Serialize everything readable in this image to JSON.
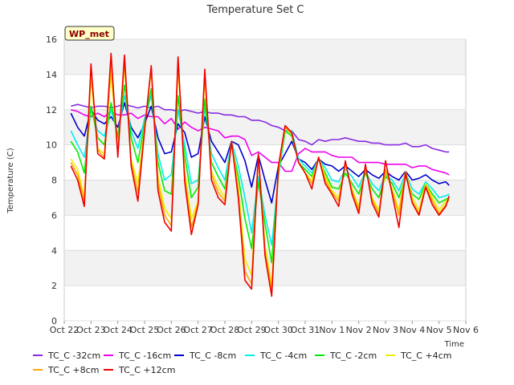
{
  "chart_data": {
    "type": "line",
    "title": "Temperature Set C",
    "xlabel": "Time",
    "ylabel": "Temperature (C)",
    "badge": "WP_met",
    "grid": true,
    "legend_position": "bottom",
    "ylim": [
      0,
      16
    ],
    "yticks": [
      0,
      2,
      4,
      6,
      8,
      10,
      12,
      14,
      16
    ],
    "xlim": [
      "2022-10-22",
      "2022-11-06"
    ],
    "xtick_dates": [
      "2022-10-22",
      "2022-10-23",
      "2022-10-24",
      "2022-10-25",
      "2022-10-26",
      "2022-10-27",
      "2022-10-28",
      "2022-10-29",
      "2022-10-30",
      "2022-10-31",
      "2022-11-01",
      "2022-11-02",
      "2022-11-03",
      "2022-11-04",
      "2022-11-05",
      "2022-11-06"
    ],
    "xtick_labels": [
      "Oct 22",
      "Oct 23",
      "Oct 24",
      "Oct 25",
      "Oct 26",
      "Oct 27",
      "Oct 28",
      "Oct 29",
      "Oct 30",
      "Oct 31",
      "Nov 1",
      "Nov 2",
      "Nov 3",
      "Nov 4",
      "Nov 5",
      "Nov 6"
    ],
    "x": [
      "2022-10-22 06:00",
      "2022-10-22 12:00",
      "2022-10-22 18:00",
      "2022-10-23 00:00",
      "2022-10-23 06:00",
      "2022-10-23 12:00",
      "2022-10-23 18:00",
      "2022-10-24 00:00",
      "2022-10-24 06:00",
      "2022-10-24 12:00",
      "2022-10-24 18:00",
      "2022-10-25 00:00",
      "2022-10-25 06:00",
      "2022-10-25 12:00",
      "2022-10-25 18:00",
      "2022-10-26 00:00",
      "2022-10-26 06:00",
      "2022-10-26 12:00",
      "2022-10-26 18:00",
      "2022-10-27 00:00",
      "2022-10-27 06:00",
      "2022-10-27 12:00",
      "2022-10-27 18:00",
      "2022-10-28 00:00",
      "2022-10-28 06:00",
      "2022-10-28 12:00",
      "2022-10-28 18:00",
      "2022-10-29 00:00",
      "2022-10-29 06:00",
      "2022-10-29 12:00",
      "2022-10-29 18:00",
      "2022-10-30 00:00",
      "2022-10-30 06:00",
      "2022-10-30 12:00",
      "2022-10-30 18:00",
      "2022-10-31 00:00",
      "2022-10-31 06:00",
      "2022-10-31 12:00",
      "2022-10-31 18:00",
      "2022-11-01 00:00",
      "2022-11-01 06:00",
      "2022-11-01 12:00",
      "2022-11-01 18:00",
      "2022-11-02 00:00",
      "2022-11-02 06:00",
      "2022-11-02 12:00",
      "2022-11-02 18:00",
      "2022-11-03 00:00",
      "2022-11-03 06:00",
      "2022-11-03 12:00",
      "2022-11-03 18:00",
      "2022-11-04 00:00",
      "2022-11-04 06:00",
      "2022-11-04 12:00",
      "2022-11-04 18:00",
      "2022-11-05 00:00",
      "2022-11-05 06:00",
      "2022-11-05 09:00"
    ],
    "series": [
      {
        "name": "TC_C -32cm",
        "color": "#8a2be2",
        "values": [
          12.2,
          12.3,
          12.2,
          12.1,
          12.2,
          12.2,
          12.1,
          12.2,
          12.3,
          12.2,
          12.1,
          12.2,
          12.1,
          12.2,
          12.0,
          12.0,
          11.9,
          12.0,
          11.9,
          11.8,
          11.9,
          11.8,
          11.8,
          11.7,
          11.7,
          11.6,
          11.6,
          11.4,
          11.4,
          11.3,
          11.1,
          11.0,
          10.8,
          10.8,
          10.3,
          10.2,
          10.0,
          10.3,
          10.2,
          10.3,
          10.3,
          10.4,
          10.3,
          10.2,
          10.2,
          10.1,
          10.1,
          10.0,
          10.0,
          10.0,
          10.1,
          9.9,
          9.9,
          10.0,
          9.8,
          9.7,
          9.6,
          9.6
        ]
      },
      {
        "name": "TC_C -16cm",
        "color": "#ee00ee",
        "values": [
          12.0,
          11.9,
          11.7,
          11.6,
          11.8,
          11.6,
          11.9,
          11.7,
          11.7,
          11.8,
          11.5,
          11.7,
          11.6,
          11.6,
          11.2,
          11.5,
          10.9,
          11.3,
          11.0,
          10.8,
          11.0,
          10.9,
          10.8,
          10.4,
          10.5,
          10.5,
          10.3,
          9.4,
          9.6,
          9.3,
          9.0,
          9.0,
          8.5,
          8.5,
          9.5,
          9.8,
          9.6,
          9.6,
          9.6,
          9.4,
          9.3,
          9.3,
          9.3,
          9.0,
          9.0,
          9.0,
          9.0,
          8.9,
          8.9,
          8.9,
          8.9,
          8.7,
          8.8,
          8.8,
          8.6,
          8.5,
          8.4,
          8.3
        ]
      },
      {
        "name": "TC_C -8cm",
        "color": "#0000cd",
        "values": [
          11.8,
          11.0,
          10.5,
          12.0,
          11.4,
          11.2,
          11.6,
          11.0,
          12.4,
          11.0,
          10.4,
          11.2,
          12.2,
          10.4,
          9.5,
          9.6,
          11.2,
          10.7,
          9.3,
          9.5,
          11.6,
          10.2,
          9.6,
          9.0,
          10.2,
          10.0,
          9.1,
          7.6,
          9.4,
          8.0,
          6.7,
          8.8,
          9.5,
          10.2,
          9.2,
          9.0,
          8.6,
          9.2,
          8.9,
          8.8,
          8.5,
          8.8,
          8.5,
          8.2,
          8.6,
          8.3,
          8.1,
          8.5,
          8.2,
          8.0,
          8.5,
          8.0,
          8.1,
          8.3,
          8.0,
          7.8,
          7.9,
          7.7
        ]
      },
      {
        "name": "TC_C -4cm",
        "color": "#00eeee",
        "values": [
          10.8,
          10.0,
          9.3,
          12.0,
          10.8,
          10.5,
          12.0,
          10.6,
          12.8,
          10.8,
          9.8,
          11.5,
          12.8,
          9.5,
          8.0,
          8.3,
          12.0,
          10.0,
          7.8,
          8.0,
          12.2,
          9.5,
          8.7,
          8.0,
          10.2,
          8.8,
          7.0,
          5.0,
          8.2,
          6.0,
          4.3,
          8.2,
          10.8,
          10.8,
          9.2,
          8.8,
          8.4,
          9.2,
          8.7,
          8.0,
          7.9,
          8.6,
          8.2,
          7.6,
          8.5,
          7.8,
          7.4,
          8.3,
          8.0,
          7.4,
          8.4,
          7.5,
          7.2,
          7.9,
          7.5,
          7.0,
          7.1,
          7.2
        ]
      },
      {
        "name": "TC_C -2cm",
        "color": "#00ee00",
        "values": [
          10.2,
          9.6,
          8.4,
          12.2,
          10.4,
          10.0,
          12.4,
          10.4,
          13.4,
          10.4,
          9.0,
          11.2,
          13.2,
          9.0,
          7.4,
          7.2,
          12.8,
          9.4,
          7.0,
          7.6,
          12.6,
          9.0,
          8.2,
          7.5,
          10.0,
          8.2,
          5.8,
          4.1,
          7.9,
          5.5,
          3.3,
          8.4,
          10.8,
          10.5,
          9.0,
          8.6,
          8.2,
          9.2,
          8.4,
          7.6,
          7.5,
          8.4,
          7.8,
          7.2,
          8.4,
          7.5,
          7.0,
          8.2,
          7.8,
          7.0,
          8.2,
          7.2,
          6.9,
          7.8,
          7.2,
          6.7,
          6.9,
          7.0
        ]
      },
      {
        "name": "TC_C +4cm",
        "color": "#eeee00",
        "values": [
          9.2,
          8.6,
          7.0,
          13.8,
          9.8,
          9.5,
          14.0,
          9.8,
          14.5,
          9.2,
          7.8,
          11.0,
          14.2,
          8.2,
          6.4,
          5.8,
          14.4,
          8.5,
          5.8,
          6.8,
          13.8,
          8.5,
          7.6,
          7.0,
          10.2,
          7.6,
          3.5,
          2.6,
          9.3,
          4.3,
          2.0,
          8.6,
          11.0,
          10.6,
          9.0,
          8.4,
          8.0,
          9.3,
          8.2,
          7.4,
          7.0,
          8.9,
          7.5,
          6.5,
          8.8,
          7.0,
          6.3,
          8.5,
          7.5,
          6.3,
          8.5,
          7.0,
          6.3,
          7.8,
          7.0,
          6.3,
          6.8,
          7.0
        ]
      },
      {
        "name": "TC_C +8cm",
        "color": "#ffa500",
        "values": [
          9.0,
          8.3,
          6.8,
          14.2,
          9.7,
          9.3,
          14.6,
          9.6,
          14.8,
          9.0,
          7.3,
          10.9,
          14.4,
          7.8,
          6.0,
          5.4,
          14.8,
          8.2,
          5.3,
          6.7,
          14.0,
          8.3,
          7.3,
          6.8,
          10.2,
          7.3,
          2.8,
          2.1,
          9.4,
          4.0,
          1.7,
          8.7,
          11.0,
          10.6,
          9.0,
          8.4,
          7.8,
          9.3,
          8.0,
          7.3,
          6.8,
          9.0,
          7.4,
          6.3,
          8.8,
          6.9,
          6.1,
          8.6,
          7.4,
          6.0,
          8.5,
          6.8,
          6.1,
          7.7,
          6.8,
          6.1,
          6.6,
          6.9
        ]
      },
      {
        "name": "TC_C +12cm",
        "color": "#ee0000",
        "values": [
          8.8,
          8.0,
          6.5,
          14.6,
          9.5,
          9.2,
          15.2,
          9.3,
          15.1,
          8.8,
          6.8,
          10.8,
          14.5,
          7.4,
          5.6,
          5.1,
          15.0,
          7.9,
          4.9,
          6.6,
          14.3,
          8.0,
          7.0,
          6.6,
          10.2,
          7.0,
          2.3,
          1.8,
          9.5,
          3.7,
          1.4,
          8.8,
          11.1,
          10.7,
          9.0,
          8.4,
          7.5,
          9.3,
          7.8,
          7.2,
          6.5,
          9.1,
          7.2,
          6.1,
          8.9,
          6.7,
          5.9,
          9.1,
          7.2,
          5.3,
          8.4,
          6.7,
          6.0,
          7.6,
          6.6,
          6.0,
          6.5,
          7.1
        ]
      }
    ]
  }
}
